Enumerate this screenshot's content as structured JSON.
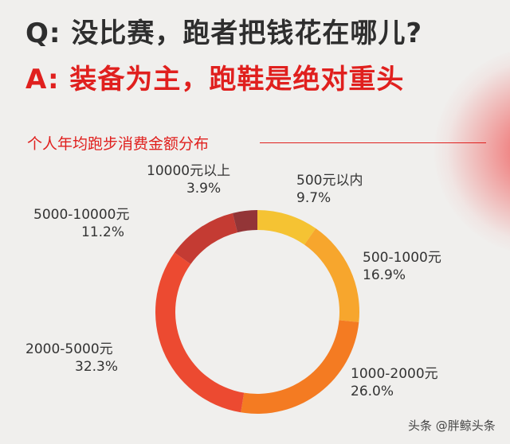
{
  "header": {
    "question": "Q: 没比赛，跑者把钱花在哪儿?",
    "answer": "A: 装备为主，跑鞋是绝对重头"
  },
  "watermark": "头条 @胖鲸头条",
  "colors": {
    "accent": "#e0201e",
    "background": "#f0efed"
  },
  "chart_data": {
    "type": "pie",
    "title": "个人年均跑步消费金额分布",
    "donut": true,
    "categories": [
      "500元以内",
      "500-1000元",
      "1000-2000元",
      "2000-5000元",
      "5000-10000元",
      "10000元以上"
    ],
    "values": [
      9.7,
      16.9,
      26.0,
      32.3,
      11.2,
      3.9
    ],
    "value_labels": [
      "9.7%",
      "16.9%",
      "26.0%",
      "32.3%",
      "11.2%",
      "3.9%"
    ],
    "colors": [
      "#f5c333",
      "#f7a62d",
      "#f47b22",
      "#ec4a31",
      "#c43b33",
      "#933537"
    ]
  }
}
